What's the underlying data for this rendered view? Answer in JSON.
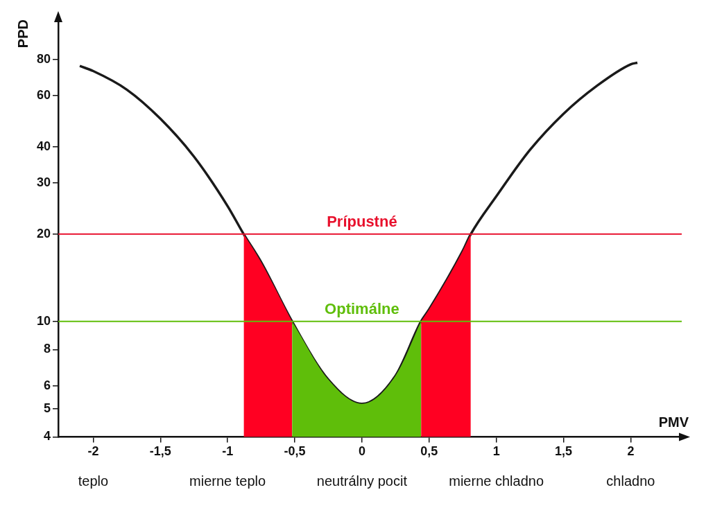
{
  "chart_data": {
    "type": "line",
    "xlabel": "PMV",
    "ylabel": "PPD",
    "log": "y",
    "grid": false,
    "legend": false,
    "marker": "none",
    "xlim": [
      -2.26,
      2.38
    ],
    "ylim": [
      4,
      110
    ],
    "xticks": [
      {
        "value": -2,
        "label": "-2"
      },
      {
        "value": -1.5,
        "label": "-1,5"
      },
      {
        "value": -1,
        "label": "-1"
      },
      {
        "value": -0.5,
        "label": "-0,5"
      },
      {
        "value": 0,
        "label": "0"
      },
      {
        "value": 0.5,
        "label": "0,5"
      },
      {
        "value": 1,
        "label": "1"
      },
      {
        "value": 1.5,
        "label": "1,5"
      },
      {
        "value": 2,
        "label": "2"
      }
    ],
    "yticks": [
      4,
      5,
      6,
      8,
      10,
      20,
      30,
      40,
      60,
      80
    ],
    "series": [
      {
        "type": "area",
        "color": "#ff0022",
        "x": [
          -0.88,
          -0.75,
          -0.52
        ],
        "values": [
          20,
          16,
          10
        ]
      },
      {
        "type": "area",
        "color": "#5fbe0a",
        "x": [
          -0.52,
          -0.25,
          0,
          0.25,
          0.44
        ],
        "values": [
          10,
          6.3,
          5.2,
          6.5,
          10
        ]
      },
      {
        "type": "area",
        "color": "#ff0022",
        "x": [
          0.44,
          0.5,
          0.75,
          0.81
        ],
        "values": [
          10,
          11,
          17.5,
          20
        ]
      },
      {
        "type": "line",
        "color": "#1a1a1a",
        "x": [
          -2.1,
          -2,
          -1.75,
          -1.5,
          -1.25,
          -1,
          -0.88,
          -0.75,
          -0.52,
          -0.25,
          0,
          0.25,
          0.44,
          0.5,
          0.75,
          0.81,
          1,
          1.25,
          1.5,
          1.75,
          2,
          2.05
        ],
        "values": [
          76,
          73,
          63,
          50,
          37,
          25,
          20,
          16,
          10,
          6.3,
          5.2,
          6.5,
          10,
          11,
          17.5,
          20,
          27,
          39,
          52,
          65,
          77,
          78
        ]
      }
    ],
    "ref_lines": [
      {
        "axis": "y",
        "value": 20,
        "label": "Prípustné",
        "color": "#e8112d"
      },
      {
        "axis": "y",
        "value": 10,
        "label": "Optimálne",
        "color": "#5fbe0a"
      }
    ],
    "annotations": [
      "teplo",
      "mierne teplo",
      "neutrálny pocit",
      "mierne chladno",
      "chladno"
    ]
  }
}
